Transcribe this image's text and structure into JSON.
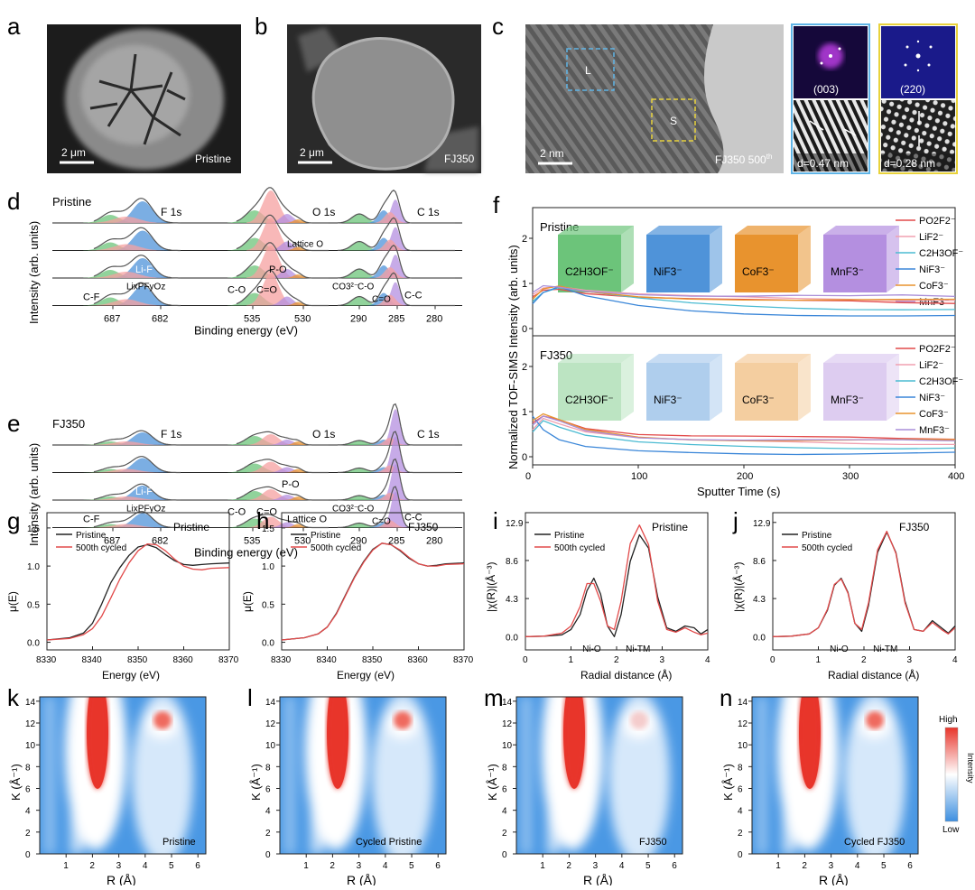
{
  "colors": {
    "green": "#6cc47a",
    "blue": "#4f93d9",
    "pink": "#f5a0a0",
    "purple": "#b48fe0",
    "orange": "#e8932e",
    "red": "#e24a4a",
    "black": "#222222"
  },
  "panels": {
    "a": {
      "letter": "a",
      "label": "Pristine",
      "scale": "2 μm"
    },
    "b": {
      "letter": "b",
      "label": "FJ350",
      "scale": "2 μm"
    },
    "c": {
      "letter": "c",
      "box_l": "L",
      "box_s": "S",
      "scale": "2 nm",
      "label": "FJ350 500",
      "label_sup": "th",
      "fft1": "(003)",
      "fft2": "(220)",
      "d1": "d=0.47 nm",
      "d2": "d=0.28 nm"
    },
    "d": {
      "letter": "d",
      "sample": "Pristine",
      "f1s": "F 1s",
      "o1s": "O 1s",
      "c1s": "C 1s",
      "lattice_o": "Lattice O",
      "lif": "Li-F",
      "po": "P-O",
      "cf": "C-F",
      "lipfo": "LixPFyOz",
      "co": "C-O",
      "ceo": "C=O",
      "co3": "CO3²⁻",
      "cc": "C-C",
      "ylabel": "Intensity (arb. units)",
      "xlabel": "Binding energy (eV)",
      "ticks": [
        "687",
        "682",
        "535",
        "530",
        "290",
        "285",
        "280"
      ]
    },
    "e": {
      "letter": "e",
      "sample": "FJ350",
      "f1s": "F 1s",
      "o1s": "O 1s",
      "c1s": "C 1s",
      "lattice_o": "Lattice O",
      "lif": "Li-F",
      "po": "P-O",
      "cf": "C-F",
      "lipfo": "LixPFyOz",
      "co": "C-O",
      "ceo": "C=O",
      "co3": "CO3²⁻",
      "cc": "C-C",
      "ylabel": "Intensity (arb. units)",
      "xlabel": "Binding energy (eV)",
      "ticks": [
        "687",
        "682",
        "535",
        "530",
        "290",
        "285",
        "280"
      ]
    },
    "f": {
      "letter": "f",
      "top": "Pristine",
      "bottom": "FJ350",
      "ylabel": "Normalized TOF-SIMS Intensity (arb. units)",
      "xlabel": "Sputter Time (s)",
      "cubes": [
        "C2H3OF⁻",
        "NiF3⁻",
        "CoF3⁻",
        "MnF3⁻"
      ],
      "legend": [
        "PO2F2⁻",
        "LiF2⁻",
        "C2H3OF⁻",
        "NiF3⁻",
        "CoF3⁻",
        "MnF3⁻"
      ],
      "xticks": [
        "0",
        "100",
        "200",
        "300",
        "400"
      ],
      "yticks": [
        "0",
        "1",
        "2"
      ]
    },
    "g": {
      "letter": "g",
      "title": "Pristine",
      "legend": [
        "Pristine",
        "500th cycled"
      ],
      "ylabel": "μ(E)",
      "xlabel": "Energy (eV)",
      "xticks": [
        "8330",
        "8340",
        "8350",
        "8360",
        "8370"
      ],
      "yticks": [
        "0.0",
        "0.5",
        "1.0",
        "1.5"
      ]
    },
    "h": {
      "letter": "h",
      "title": "FJ350",
      "legend": [
        "Pristine",
        "500th cycled"
      ],
      "ylabel": "μ(E)",
      "xlabel": "Energy (eV)",
      "xticks": [
        "8330",
        "8340",
        "8350",
        "8360",
        "8370"
      ],
      "yticks": [
        "0.0",
        "0.5",
        "1.0",
        "1.5"
      ]
    },
    "i": {
      "letter": "i",
      "title": "Pristine",
      "legend": [
        "Pristine",
        "500th cycled"
      ],
      "ylabel": "|χ(R)|(Å⁻³)",
      "xlabel": "Radial distance (Å)",
      "nio": "Ni-O",
      "nitm": "Ni-TM",
      "xticks": [
        "0",
        "1",
        "2",
        "3",
        "4"
      ],
      "yticks": [
        "0.0",
        "4.3",
        "8.6",
        "12.9"
      ]
    },
    "j": {
      "letter": "j",
      "title": "FJ350",
      "legend": [
        "Pristine",
        "500th cycled"
      ],
      "ylabel": "|χ(R)|(Å⁻³)",
      "xlabel": "Radial distance (Å)",
      "nio": "Ni-O",
      "nitm": "Ni-TM",
      "xticks": [
        "0",
        "1",
        "2",
        "3",
        "4"
      ],
      "yticks": [
        "0.0",
        "4.3",
        "8.6",
        "12.9"
      ]
    },
    "k": {
      "letter": "k",
      "label": "Pristine"
    },
    "l": {
      "letter": "l",
      "label": "Cycled Pristine"
    },
    "m": {
      "letter": "m",
      "label": "FJ350"
    },
    "n": {
      "letter": "n",
      "label": "Cycled FJ350"
    },
    "wt": {
      "ylabel": "K (Å⁻¹)",
      "xlabel": "R (Å)",
      "xticks": [
        "1",
        "2",
        "3",
        "4",
        "5",
        "6"
      ],
      "yticks": [
        "0",
        "2",
        "4",
        "6",
        "8",
        "10",
        "12",
        "14"
      ],
      "cb_high": "High",
      "cb_low": "Low",
      "cb_title": "Intensity"
    }
  },
  "chart_data": [
    {
      "type": "line",
      "panel": "g",
      "title": "Pristine",
      "xlabel": "Energy (eV)",
      "ylabel": "μ(E)",
      "xlim": [
        8330,
        8370
      ],
      "ylim": [
        -0.1,
        1.7
      ],
      "series": [
        {
          "name": "Pristine",
          "x": [
            8330,
            8335,
            8338,
            8340,
            8342,
            8344,
            8346,
            8348,
            8350,
            8352,
            8354,
            8356,
            8358,
            8360,
            8362,
            8364,
            8366,
            8370
          ],
          "values": [
            0.03,
            0.06,
            0.12,
            0.25,
            0.5,
            0.78,
            0.98,
            1.14,
            1.25,
            1.28,
            1.24,
            1.15,
            1.07,
            1.02,
            1.01,
            1.02,
            1.03,
            1.04
          ]
        },
        {
          "name": "500th cycled",
          "x": [
            8330,
            8335,
            8338,
            8340,
            8342,
            8344,
            8346,
            8348,
            8350,
            8352,
            8354,
            8356,
            8358,
            8360,
            8362,
            8364,
            8366,
            8370
          ],
          "values": [
            0.03,
            0.05,
            0.1,
            0.18,
            0.34,
            0.58,
            0.83,
            1.04,
            1.2,
            1.29,
            1.28,
            1.2,
            1.09,
            1.0,
            0.96,
            0.95,
            0.97,
            0.98
          ]
        }
      ]
    },
    {
      "type": "line",
      "panel": "h",
      "title": "FJ350",
      "xlabel": "Energy (eV)",
      "ylabel": "μ(E)",
      "xlim": [
        8330,
        8370
      ],
      "ylim": [
        -0.1,
        1.7
      ],
      "series": [
        {
          "name": "Pristine",
          "x": [
            8330,
            8335,
            8338,
            8340,
            8342,
            8344,
            8346,
            8348,
            8350,
            8352,
            8354,
            8356,
            8358,
            8360,
            8362,
            8364,
            8366,
            8370
          ],
          "values": [
            0.03,
            0.06,
            0.11,
            0.2,
            0.38,
            0.62,
            0.86,
            1.06,
            1.22,
            1.3,
            1.28,
            1.2,
            1.1,
            1.03,
            1.0,
            1.01,
            1.03,
            1.04
          ]
        },
        {
          "name": "500th cycled",
          "x": [
            8330,
            8335,
            8338,
            8340,
            8342,
            8344,
            8346,
            8348,
            8350,
            8352,
            8354,
            8356,
            8358,
            8360,
            8362,
            8364,
            8366,
            8370
          ],
          "values": [
            0.03,
            0.06,
            0.11,
            0.2,
            0.37,
            0.61,
            0.85,
            1.05,
            1.21,
            1.3,
            1.28,
            1.21,
            1.11,
            1.03,
            1.0,
            1.0,
            1.02,
            1.03
          ]
        }
      ]
    },
    {
      "type": "line",
      "panel": "i",
      "title": "Pristine",
      "xlabel": "Radial distance (Å)",
      "ylabel": "|χ(R)|(Å⁻³)",
      "xlim": [
        0,
        4
      ],
      "ylim": [
        -1.5,
        14
      ],
      "series": [
        {
          "name": "Pristine",
          "x": [
            0,
            0.4,
            0.8,
            1.0,
            1.2,
            1.35,
            1.5,
            1.65,
            1.8,
            1.95,
            2.1,
            2.3,
            2.5,
            2.7,
            2.9,
            3.1,
            3.3,
            3.5,
            3.7,
            3.85,
            4.0
          ],
          "values": [
            0,
            0.05,
            0.2,
            0.8,
            2.5,
            5.2,
            6.6,
            4.8,
            1.2,
            0.0,
            2.5,
            8.5,
            11.5,
            10.0,
            4.5,
            1.0,
            0.6,
            1.2,
            1.0,
            0.3,
            0.8
          ]
        },
        {
          "name": "500th cycled",
          "x": [
            0,
            0.4,
            0.8,
            1.0,
            1.2,
            1.35,
            1.5,
            1.65,
            1.8,
            1.95,
            2.1,
            2.3,
            2.5,
            2.7,
            2.9,
            3.1,
            3.3,
            3.5,
            3.7,
            3.85,
            4.0
          ],
          "values": [
            0,
            0.05,
            0.4,
            1.2,
            3.4,
            6.0,
            6.0,
            4.0,
            1.2,
            0.8,
            4.0,
            10.5,
            12.6,
            10.4,
            4.0,
            0.8,
            0.5,
            1.0,
            0.5,
            0.2,
            0.4
          ]
        }
      ]
    },
    {
      "type": "line",
      "panel": "j",
      "title": "FJ350",
      "xlabel": "Radial distance (Å)",
      "ylabel": "|χ(R)|(Å⁻³)",
      "xlim": [
        0,
        4
      ],
      "ylim": [
        -1.5,
        14
      ],
      "series": [
        {
          "name": "Pristine",
          "x": [
            0,
            0.4,
            0.8,
            1.0,
            1.2,
            1.35,
            1.5,
            1.65,
            1.8,
            1.95,
            2.1,
            2.3,
            2.5,
            2.7,
            2.9,
            3.1,
            3.3,
            3.5,
            3.7,
            3.85,
            4.0
          ],
          "values": [
            0,
            0.05,
            0.3,
            1.0,
            3.0,
            5.8,
            6.6,
            5.0,
            1.5,
            0.6,
            3.5,
            9.5,
            11.8,
            9.5,
            4.0,
            0.8,
            0.6,
            1.8,
            1.0,
            0.4,
            1.2
          ]
        },
        {
          "name": "500th cycled",
          "x": [
            0,
            0.4,
            0.8,
            1.0,
            1.2,
            1.35,
            1.5,
            1.65,
            1.8,
            1.95,
            2.1,
            2.3,
            2.5,
            2.7,
            2.9,
            3.1,
            3.3,
            3.5,
            3.7,
            3.85,
            4.0
          ],
          "values": [
            0,
            0.05,
            0.3,
            1.0,
            3.1,
            5.9,
            6.5,
            4.9,
            1.5,
            0.8,
            3.8,
            9.8,
            11.9,
            9.4,
            3.8,
            0.8,
            0.6,
            1.6,
            0.8,
            0.3,
            1.0
          ]
        }
      ]
    },
    {
      "type": "line",
      "panel": "f-top",
      "title": "Pristine",
      "xlabel": "Sputter Time (s)",
      "xlim": [
        0,
        400
      ],
      "ylim": [
        0,
        2.2
      ],
      "series": [
        {
          "name": "PO2F2⁻",
          "x": [
            0,
            10,
            25,
            50,
            100,
            150,
            200,
            250,
            300,
            350,
            400
          ],
          "values": [
            0.7,
            0.85,
            0.9,
            0.8,
            0.7,
            0.65,
            0.62,
            0.6,
            0.6,
            0.58,
            0.58
          ]
        },
        {
          "name": "LiF2⁻",
          "x": [
            0,
            10,
            25,
            50,
            100,
            150,
            200,
            250,
            300,
            350,
            400
          ],
          "values": [
            0.75,
            0.9,
            0.95,
            0.85,
            0.75,
            0.7,
            0.68,
            0.66,
            0.66,
            0.65,
            0.65
          ]
        },
        {
          "name": "C2H3OF⁻",
          "x": [
            0,
            10,
            25,
            50,
            100,
            150,
            200,
            250,
            300,
            350,
            400
          ],
          "values": [
            0.6,
            0.8,
            0.9,
            0.8,
            0.65,
            0.55,
            0.5,
            0.47,
            0.45,
            0.44,
            0.43
          ]
        },
        {
          "name": "NiF3⁻",
          "x": [
            0,
            10,
            25,
            50,
            100,
            150,
            200,
            250,
            300,
            350,
            400
          ],
          "values": [
            0.55,
            0.8,
            0.9,
            0.7,
            0.5,
            0.4,
            0.35,
            0.32,
            0.3,
            0.28,
            0.27
          ]
        },
        {
          "name": "CoF3⁻",
          "x": [
            0,
            10,
            25,
            50,
            100,
            150,
            200,
            250,
            300,
            350,
            400
          ],
          "values": [
            0.65,
            0.88,
            0.92,
            0.82,
            0.72,
            0.68,
            0.66,
            0.64,
            0.63,
            0.62,
            0.62
          ]
        },
        {
          "name": "MnF3⁻",
          "x": [
            0,
            10,
            25,
            50,
            100,
            150,
            200,
            250,
            300,
            350,
            400
          ],
          "values": [
            0.8,
            0.95,
            0.92,
            0.85,
            0.78,
            0.74,
            0.72,
            0.72,
            0.7,
            0.72,
            0.7
          ]
        }
      ]
    },
    {
      "type": "line",
      "panel": "f-bottom",
      "title": "FJ350",
      "xlabel": "Sputter Time (s)",
      "xlim": [
        0,
        400
      ],
      "ylim": [
        0,
        2.2
      ],
      "series": [
        {
          "name": "PO2F2⁻",
          "x": [
            0,
            10,
            25,
            50,
            100,
            150,
            200,
            250,
            300,
            350,
            400
          ],
          "values": [
            0.75,
            0.9,
            0.85,
            0.65,
            0.5,
            0.45,
            0.43,
            0.42,
            0.42,
            0.41,
            0.41
          ]
        },
        {
          "name": "LiF2⁻",
          "x": [
            0,
            10,
            25,
            50,
            100,
            150,
            200,
            250,
            300,
            350,
            400
          ],
          "values": [
            0.6,
            0.85,
            0.75,
            0.55,
            0.4,
            0.35,
            0.33,
            0.32,
            0.31,
            0.3,
            0.3
          ]
        },
        {
          "name": "C2H3OF⁻",
          "x": [
            0,
            10,
            25,
            50,
            100,
            150,
            200,
            250,
            300,
            350,
            400
          ],
          "values": [
            0.55,
            0.8,
            0.65,
            0.45,
            0.3,
            0.25,
            0.23,
            0.22,
            0.21,
            0.2,
            0.2
          ]
        },
        {
          "name": "NiF3⁻",
          "x": [
            0,
            10,
            25,
            50,
            100,
            150,
            200,
            250,
            300,
            350,
            400
          ],
          "values": [
            0.9,
            0.6,
            0.35,
            0.2,
            0.12,
            0.1,
            0.09,
            0.08,
            0.08,
            0.08,
            0.08
          ]
        },
        {
          "name": "CoF3⁻",
          "x": [
            0,
            10,
            25,
            50,
            100,
            150,
            200,
            250,
            300,
            350,
            400
          ],
          "values": [
            0.8,
            0.95,
            0.8,
            0.6,
            0.45,
            0.4,
            0.38,
            0.37,
            0.36,
            0.36,
            0.35
          ]
        },
        {
          "name": "MnF3⁻",
          "x": [
            0,
            10,
            25,
            50,
            100,
            150,
            200,
            250,
            300,
            350,
            400
          ],
          "values": [
            0.7,
            0.9,
            0.8,
            0.6,
            0.45,
            0.4,
            0.37,
            0.36,
            0.35,
            0.35,
            0.34
          ]
        }
      ]
    }
  ]
}
